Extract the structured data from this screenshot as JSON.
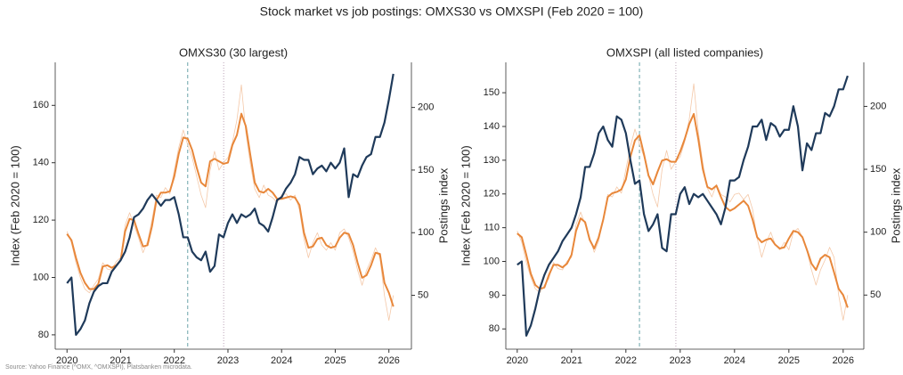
{
  "title": "Stock market vs job postings: OMXS30 vs OMXSPI (Feb 2020 = 100)",
  "source": "Source: Yahoo Finance (^OMX, ^OMXSPI), Platsbanken microdata.",
  "chart_data": [
    {
      "type": "line",
      "title": "OMXS30 (30 largest)",
      "ylabel": "Index (Feb 2020 = 100)",
      "y2label": "Postings index",
      "ylabel_color": "#1f3a5a",
      "y2label_color": "#e8873a",
      "xlim": [
        2019.78,
        2026.42
      ],
      "xticks": [
        2020,
        2021,
        2022,
        2023,
        2024,
        2025,
        2026
      ],
      "ylim": [
        75,
        175
      ],
      "yticks": [
        80,
        100,
        120,
        140,
        160
      ],
      "y2lim": [
        7,
        236
      ],
      "y2ticks": [
        50,
        100,
        150,
        200
      ],
      "vlines": [
        {
          "x": 2022.25,
          "style": "dashed",
          "color": "#5b9aa0"
        },
        {
          "x": 2022.92,
          "style": "dotted",
          "color": "#b49ab0"
        }
      ],
      "x": [
        2020,
        2020.083,
        2020.167,
        2020.25,
        2020.333,
        2020.417,
        2020.5,
        2020.583,
        2020.667,
        2020.75,
        2020.833,
        2020.917,
        2021,
        2021.083,
        2021.167,
        2021.25,
        2021.333,
        2021.417,
        2021.5,
        2021.583,
        2021.667,
        2021.75,
        2021.833,
        2021.917,
        2022,
        2022.083,
        2022.167,
        2022.25,
        2022.333,
        2022.417,
        2022.5,
        2022.583,
        2022.667,
        2022.75,
        2022.833,
        2022.917,
        2023,
        2023.083,
        2023.167,
        2023.25,
        2023.333,
        2023.417,
        2023.5,
        2023.583,
        2023.667,
        2023.75,
        2023.833,
        2023.917,
        2024,
        2024.083,
        2024.167,
        2024.25,
        2024.333,
        2024.417,
        2024.5,
        2024.583,
        2024.667,
        2024.75,
        2024.833,
        2024.917,
        2025,
        2025.083,
        2025.167,
        2025.25,
        2025.333,
        2025.417,
        2025.5,
        2025.583,
        2025.667,
        2025.75,
        2025.833,
        2025.917,
        2026,
        2026.083
      ],
      "series": [
        {
          "color": "#f4c8a8",
          "axis": "y2",
          "width": 0.8,
          "values": [
            101,
            92,
            76,
            64,
            55,
            52,
            58,
            63,
            76,
            71,
            70,
            77,
            80,
            106,
            116,
            106,
            96,
            84,
            93,
            110,
            130,
            128,
            136,
            131,
            150,
            168,
            182,
            170,
            160,
            145,
            130,
            120,
            150,
            165,
            150,
            156,
            160,
            172,
            190,
            218,
            180,
            155,
            135,
            128,
            138,
            130,
            128,
            124,
            130,
            131,
            126,
            130,
            118,
            95,
            80,
            92,
            100,
            90,
            86,
            92,
            86,
            100,
            103,
            96,
            85,
            70,
            58,
            70,
            78,
            88,
            80,
            50,
            30,
            50
          ]
        },
        {
          "color": "#e8873a",
          "axis": "y2",
          "width": 2,
          "values": [
            99,
            94,
            80,
            68,
            60,
            55,
            55,
            59,
            73,
            74,
            72,
            74,
            78,
            101,
            111,
            110,
            99,
            89,
            90,
            105,
            126,
            132,
            132,
            133,
            145,
            163,
            176,
            175,
            166,
            152,
            140,
            137,
            157,
            159,
            157,
            155,
            156,
            170,
            178,
            195,
            185,
            162,
            140,
            133,
            132,
            135,
            132,
            127,
            127,
            128,
            129,
            128,
            122,
            100,
            88,
            89,
            95,
            96,
            90,
            88,
            89,
            96,
            100,
            99,
            90,
            76,
            64,
            66,
            74,
            84,
            83,
            60,
            52,
            41
          ]
        },
        {
          "color": "#1f3a5a",
          "width": 2.2,
          "values": [
            98,
            100,
            80,
            82,
            85,
            91,
            95,
            97,
            98,
            98,
            102,
            104,
            106,
            109,
            114,
            121,
            122,
            124,
            127,
            129,
            127,
            125,
            127,
            127,
            128,
            122,
            114,
            114,
            109,
            107,
            106,
            109,
            102,
            104,
            115,
            114,
            119,
            122,
            119,
            122,
            121,
            122,
            124,
            119,
            118,
            116,
            121,
            127,
            128,
            131,
            133,
            136,
            142,
            141,
            141,
            136,
            138,
            139,
            137,
            140,
            138,
            140,
            145,
            128,
            136,
            135,
            139,
            142,
            143,
            149,
            149,
            154,
            162,
            171
          ]
        }
      ]
    },
    {
      "type": "line",
      "title": "OMXSPI (all listed companies)",
      "ylabel": "Index (Feb 2020 = 100)",
      "y2label": "Postings index",
      "ylabel_color": "#1f3a5a",
      "y2label_color": "#e8873a",
      "xlim": [
        2019.79,
        2026.38
      ],
      "xticks": [
        2020,
        2021,
        2022,
        2023,
        2024,
        2025,
        2026
      ],
      "ylim": [
        74,
        159
      ],
      "yticks": [
        80,
        90,
        100,
        110,
        120,
        130,
        140,
        150
      ],
      "y2lim": [
        7,
        235
      ],
      "y2ticks": [
        50,
        100,
        150,
        200
      ],
      "vlines": [
        {
          "x": 2022.25,
          "style": "dashed",
          "color": "#5b9aa0"
        },
        {
          "x": 2022.92,
          "style": "dotted",
          "color": "#b49ab0"
        }
      ],
      "x": [
        2020,
        2020.083,
        2020.167,
        2020.25,
        2020.333,
        2020.417,
        2020.5,
        2020.583,
        2020.667,
        2020.75,
        2020.833,
        2020.917,
        2021,
        2021.083,
        2021.167,
        2021.25,
        2021.333,
        2021.417,
        2021.5,
        2021.583,
        2021.667,
        2021.75,
        2021.833,
        2021.917,
        2022,
        2022.083,
        2022.167,
        2022.25,
        2022.333,
        2022.417,
        2022.5,
        2022.583,
        2022.667,
        2022.75,
        2022.833,
        2022.917,
        2023,
        2023.083,
        2023.167,
        2023.25,
        2023.333,
        2023.417,
        2023.5,
        2023.583,
        2023.667,
        2023.75,
        2023.833,
        2023.917,
        2024,
        2024.083,
        2024.167,
        2024.25,
        2024.333,
        2024.417,
        2024.5,
        2024.583,
        2024.667,
        2024.75,
        2024.833,
        2024.917,
        2025,
        2025.083,
        2025.167,
        2025.25,
        2025.333,
        2025.417,
        2025.5,
        2025.583,
        2025.667,
        2025.75,
        2025.833,
        2025.917,
        2026,
        2026.083
      ],
      "series": [
        {
          "color": "#f4c8a8",
          "axis": "y2",
          "width": 0.8,
          "values": [
            101,
            92,
            76,
            64,
            55,
            52,
            58,
            63,
            76,
            71,
            70,
            77,
            80,
            106,
            116,
            106,
            96,
            84,
            93,
            110,
            130,
            128,
            136,
            131,
            150,
            168,
            182,
            170,
            160,
            145,
            130,
            120,
            150,
            165,
            150,
            156,
            160,
            172,
            190,
            218,
            180,
            155,
            135,
            128,
            138,
            130,
            128,
            124,
            130,
            131,
            126,
            130,
            118,
            95,
            80,
            92,
            100,
            90,
            86,
            92,
            86,
            100,
            103,
            96,
            85,
            70,
            58,
            70,
            78,
            88,
            80,
            50,
            30,
            50
          ]
        },
        {
          "color": "#e8873a",
          "axis": "y2",
          "width": 2,
          "values": [
            99,
            96,
            82,
            67,
            58,
            55,
            56,
            66,
            74,
            74,
            72,
            75,
            82,
            101,
            111,
            108,
            94,
            87,
            96,
            110,
            128,
            131,
            132,
            134,
            142,
            160,
            173,
            177,
            162,
            145,
            138,
            148,
            157,
            158,
            156,
            156,
            164,
            174,
            186,
            194,
            174,
            150,
            136,
            134,
            137,
            128,
            120,
            117,
            119,
            122,
            125,
            121,
            110,
            96,
            92,
            94,
            95,
            90,
            87,
            88,
            95,
            101,
            100,
            96,
            86,
            75,
            70,
            79,
            82,
            80,
            68,
            55,
            50,
            40
          ]
        },
        {
          "color": "#1f3a5a",
          "width": 2.2,
          "values": [
            99,
            100,
            78,
            81,
            86,
            92,
            96,
            99,
            101,
            103,
            106,
            108,
            110,
            114,
            119,
            128,
            128,
            132,
            138,
            140,
            136,
            134,
            143,
            142,
            138,
            130,
            123,
            124,
            114,
            109,
            111,
            114,
            104,
            103,
            114,
            114,
            120,
            122,
            117,
            120,
            119,
            120,
            118,
            116,
            114,
            111,
            116,
            124,
            124,
            125,
            130,
            134,
            140,
            140,
            142,
            136,
            141,
            140,
            137,
            139,
            139,
            146,
            140,
            127,
            135,
            133,
            138,
            138,
            144,
            143,
            146,
            151,
            151,
            155
          ]
        }
      ]
    }
  ]
}
